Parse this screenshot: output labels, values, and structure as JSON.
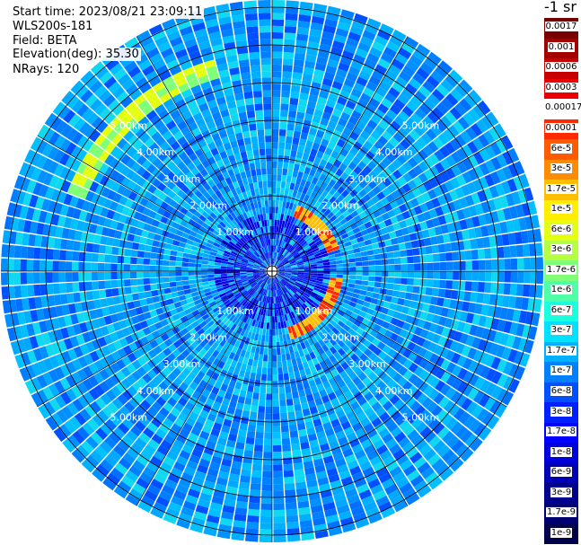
{
  "header": {
    "start_time": "Start time: 2023/08/21 23:09:11",
    "device": "WLS200s-181",
    "field": "Field: BETA",
    "elevation": "Elevation(deg): 35.30",
    "nrays": "NRays: 120"
  },
  "polar": {
    "ring_labels": [
      "1.00km",
      "2.00km",
      "3.00km",
      "4.00km",
      "5.00km"
    ],
    "n_rays": 120
  },
  "colorbar": {
    "title": "-1 sr",
    "labels": [
      "0.0017",
      "0.001",
      "0.0006",
      "0.0003",
      "0.00017",
      "0.0001",
      "6e-5",
      "3e-5",
      "1.7e-5",
      "1e-5",
      "6e-6",
      "3e-6",
      "1.7e-6",
      "1e-6",
      "6e-7",
      "3e-7",
      "1.7e-7",
      "1e-7",
      "6e-8",
      "3e-8",
      "1.7e-8",
      "1e-8",
      "6e-9",
      "3e-9",
      "1.7e-9",
      "1e-9"
    ],
    "colors": [
      "#7a0000",
      "#a50000",
      "#c80000",
      "#ee0000",
      "#ffffff",
      "#ff2a00",
      "#ff5a00",
      "#ff8c00",
      "#ffbe00",
      "#ffee00",
      "#e4ff12",
      "#b4ff42",
      "#80ff78",
      "#4effa8",
      "#1affdc",
      "#00e0ff",
      "#00b0ff",
      "#0080ff",
      "#0050ff",
      "#0020ff",
      "#0000ff",
      "#0000dc",
      "#0000b4",
      "#00008c",
      "#000070",
      "#00004a"
    ]
  }
}
